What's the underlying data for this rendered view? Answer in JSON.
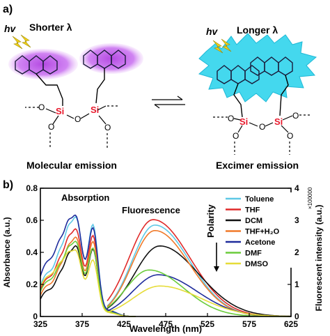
{
  "panel_a": {
    "label": "a)",
    "left": {
      "hv": "hv",
      "wavelength_label": "Shorter λ",
      "caption": "Molecular emission"
    },
    "right": {
      "hv": "hv",
      "wavelength_label": "Longer λ",
      "caption": "Excimer emission"
    },
    "atoms": {
      "si": "Si",
      "o": "O"
    },
    "colors": {
      "glow_molecular": "#cc66ee",
      "glow_excimer": "#44d8ee",
      "si": "#e8192c",
      "ring": "#2244cc",
      "lightning": "#f2d21b"
    }
  },
  "panel_b": {
    "label": "b)",
    "annotations": {
      "absorption": "Absorption",
      "fluorescence": "Fluorescence",
      "polarity": "Polarity",
      "multiplier": "×100000"
    }
  },
  "chart_data": {
    "type": "line",
    "xlabel": "Wavelength (nm)",
    "ylabel_left": "Absorbance (a.u.)",
    "ylabel_right": "Fluorescent intensity (a.u.)",
    "xlim": [
      325,
      625
    ],
    "ylim_left": [
      0,
      0.8
    ],
    "ylim_right": [
      0,
      4
    ],
    "x_ticks": [
      325,
      375,
      425,
      475,
      525,
      575,
      625
    ],
    "y_ticks_left": [
      0,
      0.2,
      0.4,
      0.6,
      0.8
    ],
    "y_ticks_right": [
      0,
      1,
      2,
      3,
      4
    ],
    "legend_position": "top-right",
    "series": [
      {
        "name": "Toluene",
        "color": "#5ec8e6",
        "abs_scale": 1.0,
        "abs_offset": 0.0,
        "fl_peak": 2.85,
        "fl_center": 462,
        "fl_width": 38
      },
      {
        "name": "THF",
        "color": "#e02a2a",
        "abs_scale": 0.88,
        "abs_offset": 0.0,
        "fl_peak": 3.02,
        "fl_center": 460,
        "fl_width": 40
      },
      {
        "name": "DCM",
        "color": "#111111",
        "abs_scale": 0.74,
        "abs_offset": -0.04,
        "fl_peak": 2.2,
        "fl_center": 468,
        "fl_width": 42
      },
      {
        "name": "THF+H₂O",
        "color": "#f07a2a",
        "abs_scale": 0.82,
        "abs_offset": -0.03,
        "fl_peak": 2.68,
        "fl_center": 462,
        "fl_width": 38
      },
      {
        "name": "Acetone",
        "color": "#1f2c9c",
        "abs_scale": 0.95,
        "abs_offset": 0.09,
        "fl_peak": 1.3,
        "fl_center": 466,
        "fl_width": 42
      },
      {
        "name": "DMF",
        "color": "#6acc3a",
        "abs_scale": 0.74,
        "abs_offset": 0.02,
        "fl_peak": 1.45,
        "fl_center": 455,
        "fl_width": 38
      },
      {
        "name": "DMSO",
        "color": "#e6dc38",
        "abs_scale": 0.6,
        "abs_offset": 0.09,
        "fl_peak": 0.95,
        "fl_center": 468,
        "fl_width": 44
      }
    ]
  }
}
